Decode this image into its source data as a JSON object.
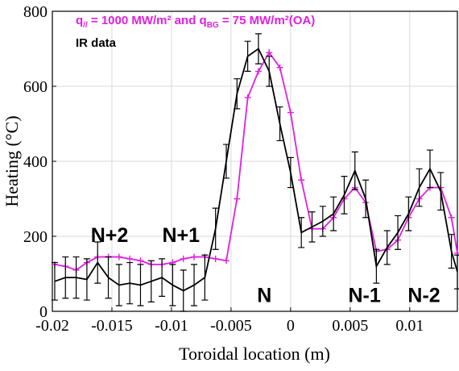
{
  "chart_data": {
    "type": "line",
    "xlabel": "Toroidal location (m)",
    "ylabel": "Heating (°C)",
    "xlim": [
      -0.02,
      0.014
    ],
    "ylim": [
      0,
      800
    ],
    "xticks": [
      -0.02,
      -0.015,
      -0.01,
      -0.005,
      0,
      0.005,
      0.01
    ],
    "xtick_labels": [
      "-0.02",
      "-0.015",
      "-0.01",
      "-0.005",
      "0",
      "0.005",
      "0.01"
    ],
    "yticks": [
      0,
      200,
      400,
      600,
      800
    ],
    "ytick_labels": [
      "0",
      "200",
      "400",
      "600",
      "800"
    ],
    "grid": true,
    "legend_position": "top-left",
    "legend": {
      "sim_prefix": "q",
      "sim_sub1": "//",
      "sim_mid": " = 1000 MW/m² and q",
      "sim_sub2": "BG",
      "sim_suffix": " = 75 MW/m²(OA)",
      "ir_label": "IR data"
    },
    "colors": {
      "sim": "#e020e0",
      "ir": "#000000",
      "grid": "#d9d9d9"
    },
    "x": [
      -0.0198,
      -0.0189,
      -0.018,
      -0.0171,
      -0.0162,
      -0.0153,
      -0.0144,
      -0.0135,
      -0.0126,
      -0.0117,
      -0.0108,
      -0.0099,
      -0.009,
      -0.0081,
      -0.0072,
      -0.0063,
      -0.0054,
      -0.0045,
      -0.0036,
      -0.0027,
      -0.0018,
      -0.0009,
      0.0,
      0.0009,
      0.0018,
      0.0027,
      0.0036,
      0.0045,
      0.0054,
      0.0063,
      0.0072,
      0.0081,
      0.009,
      0.0099,
      0.0108,
      0.0117,
      0.0126,
      0.0135,
      0.014
    ],
    "series": [
      {
        "id": "sim",
        "values": [
          125,
          120,
          110,
          130,
          145,
          145,
          145,
          140,
          135,
          125,
          125,
          130,
          140,
          145,
          145,
          140,
          135,
          300,
          570,
          640,
          690,
          650,
          530,
          350,
          220,
          220,
          250,
          300,
          330,
          290,
          160,
          165,
          190,
          250,
          300,
          330,
          330,
          250,
          155
        ]
      },
      {
        "id": "ir",
        "values": [
          80,
          90,
          90,
          85,
          130,
          90,
          70,
          75,
          70,
          80,
          90,
          70,
          55,
          70,
          90,
          220,
          400,
          580,
          680,
          700,
          640,
          500,
          370,
          210,
          225,
          240,
          260,
          310,
          375,
          300,
          120,
          170,
          210,
          260,
          330,
          380,
          320,
          160,
          105
        ]
      }
    ],
    "ir_err": [
      50,
      55,
      55,
      55,
      55,
      55,
      55,
      55,
      55,
      55,
      50,
      55,
      55,
      55,
      60,
      55,
      45,
      40,
      40,
      40,
      40,
      45,
      40,
      40,
      40,
      40,
      45,
      50,
      50,
      50,
      45,
      45,
      45,
      45,
      50,
      50,
      50,
      45,
      45
    ],
    "annotations": [
      {
        "text": "N+2",
        "x": -0.0152,
        "y": 185
      },
      {
        "text": "N+1",
        "x": -0.0092,
        "y": 185
      },
      {
        "text": "N",
        "x": -0.0022,
        "y": 25
      },
      {
        "text": "N-1",
        "x": 0.0062,
        "y": 25
      },
      {
        "text": "N-2",
        "x": 0.0112,
        "y": 25
      }
    ]
  }
}
